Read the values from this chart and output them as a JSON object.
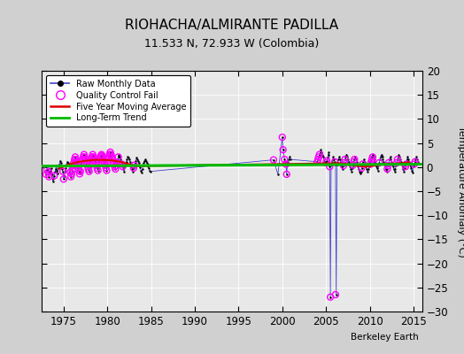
{
  "title": "RIOHACHA/ALMIRANTE PADILLA",
  "subtitle": "11.533 N, 72.933 W (Colombia)",
  "ylabel": "Temperature Anomaly (°C)",
  "xlabel_note": "Berkeley Earth",
  "xlim": [
    1972.5,
    2016
  ],
  "ylim": [
    -30,
    20
  ],
  "yticks": [
    -30,
    -25,
    -20,
    -15,
    -10,
    -5,
    0,
    5,
    10,
    15,
    20
  ],
  "xticks": [
    1975,
    1980,
    1985,
    1990,
    1995,
    2000,
    2005,
    2010,
    2015
  ],
  "fig_bg_color": "#d0d0d0",
  "plot_bg_color": "#e8e8e8",
  "grid_color": "#ffffff",
  "raw_line_color": "#4444cc",
  "raw_dot_color": "#000000",
  "qc_fail_color": "#ff00ff",
  "moving_avg_color": "#dd0000",
  "trend_color": "#00bb00",
  "raw_data_years": [
    1973.0,
    1973.083,
    1973.167,
    1973.25,
    1973.333,
    1973.417,
    1973.5,
    1973.583,
    1973.667,
    1973.75,
    1973.833,
    1973.917,
    1974.0,
    1974.083,
    1974.167,
    1974.25,
    1974.333,
    1974.417,
    1974.5,
    1974.583,
    1974.667,
    1974.75,
    1974.833,
    1974.917,
    1975.0,
    1975.083,
    1975.167,
    1975.25,
    1975.333,
    1975.417,
    1975.5,
    1975.583,
    1975.667,
    1975.75,
    1975.833,
    1975.917,
    1976.0,
    1976.083,
    1976.167,
    1976.25,
    1976.333,
    1976.417,
    1976.5,
    1976.583,
    1976.667,
    1976.75,
    1976.833,
    1976.917,
    1977.0,
    1977.083,
    1977.167,
    1977.25,
    1977.333,
    1977.417,
    1977.5,
    1977.583,
    1977.667,
    1977.75,
    1977.833,
    1977.917,
    1978.0,
    1978.083,
    1978.167,
    1978.25,
    1978.333,
    1978.417,
    1978.5,
    1978.583,
    1978.667,
    1978.75,
    1978.833,
    1978.917,
    1979.0,
    1979.083,
    1979.167,
    1979.25,
    1979.333,
    1979.417,
    1979.5,
    1979.583,
    1979.667,
    1979.75,
    1979.833,
    1979.917,
    1980.0,
    1980.083,
    1980.167,
    1980.25,
    1980.333,
    1980.417,
    1980.5,
    1980.583,
    1980.667,
    1980.75,
    1980.833,
    1980.917,
    1981.0,
    1981.083,
    1981.167,
    1981.25,
    1981.333,
    1981.417,
    1981.5,
    1981.583,
    1981.667,
    1981.75,
    1981.833,
    1981.917,
    1982.0,
    1982.083,
    1982.167,
    1982.25,
    1982.333,
    1982.417,
    1982.5,
    1982.583,
    1982.667,
    1982.75,
    1982.833,
    1982.917,
    1983.0,
    1983.083,
    1983.167,
    1983.25,
    1983.333,
    1983.417,
    1983.5,
    1983.583,
    1983.667,
    1983.75,
    1983.833,
    1983.917,
    1984.0,
    1984.083,
    1984.167,
    1984.25,
    1984.333,
    1984.417,
    1984.5,
    1984.583,
    1984.667,
    1984.75,
    1984.833,
    1984.917,
    1999.0,
    1999.5,
    2000.0,
    2000.083,
    2000.25,
    2000.333,
    2000.417,
    2000.5,
    2000.583,
    2000.667,
    2000.75,
    2000.833,
    2000.917,
    2004.0,
    2004.083,
    2004.167,
    2004.25,
    2004.333,
    2004.417,
    2004.5,
    2004.583,
    2004.667,
    2004.75,
    2004.833,
    2004.917,
    2005.0,
    2005.083,
    2005.167,
    2005.25,
    2005.333,
    2005.417,
    2005.5,
    2005.583,
    2005.667,
    2005.75,
    2005.833,
    2005.917,
    2006.0,
    2006.083,
    2006.167,
    2006.25,
    2006.333,
    2006.417,
    2006.5,
    2006.583,
    2006.667,
    2006.75,
    2006.833,
    2006.917,
    2007.0,
    2007.083,
    2007.167,
    2007.25,
    2007.333,
    2007.417,
    2007.5,
    2007.583,
    2007.667,
    2007.75,
    2007.833,
    2007.917,
    2008.0,
    2008.083,
    2008.167,
    2008.25,
    2008.333,
    2008.417,
    2008.5,
    2008.583,
    2008.667,
    2008.75,
    2008.833,
    2008.917,
    2009.0,
    2009.083,
    2009.167,
    2009.25,
    2009.333,
    2009.417,
    2009.5,
    2009.583,
    2009.667,
    2009.75,
    2009.833,
    2009.917,
    2010.0,
    2010.083,
    2010.167,
    2010.25,
    2010.333,
    2010.417,
    2010.5,
    2010.583,
    2010.667,
    2010.75,
    2010.833,
    2010.917,
    2011.0,
    2011.083,
    2011.167,
    2011.25,
    2011.333,
    2011.417,
    2011.5,
    2011.583,
    2011.667,
    2011.75,
    2011.833,
    2011.917,
    2012.0,
    2012.083,
    2012.167,
    2012.25,
    2012.333,
    2012.417,
    2012.5,
    2012.583,
    2012.667,
    2012.75,
    2012.833,
    2012.917,
    2013.0,
    2013.083,
    2013.167,
    2013.25,
    2013.333,
    2013.417,
    2013.5,
    2013.583,
    2013.667,
    2013.75,
    2013.833,
    2013.917,
    2014.0,
    2014.083,
    2014.167,
    2014.25,
    2014.333,
    2014.417,
    2014.5,
    2014.583,
    2014.667,
    2014.75,
    2014.833,
    2014.917,
    2015.0,
    2015.083,
    2015.167,
    2015.25,
    2015.333,
    2015.417,
    2015.5
  ],
  "raw_data_values": [
    -1.5,
    -0.5,
    0.3,
    -1.0,
    -2.0,
    -1.3,
    -0.8,
    -0.3,
    -1.5,
    -3.0,
    -2.5,
    -1.8,
    -1.0,
    -0.4,
    0.3,
    -0.7,
    -1.3,
    -0.2,
    0.6,
    1.3,
    0.9,
    0.4,
    -0.4,
    -0.9,
    -2.5,
    -1.8,
    -0.7,
    -0.2,
    0.6,
    1.1,
    0.9,
    0.4,
    -0.4,
    -1.1,
    -2.0,
    -1.4,
    -0.7,
    0.3,
    0.9,
    1.6,
    2.1,
    1.6,
    1.1,
    0.6,
    -0.2,
    -0.7,
    -1.4,
    -0.9,
    0.6,
    1.1,
    1.6,
    2.1,
    2.6,
    2.1,
    1.6,
    1.1,
    0.6,
    0.1,
    -0.4,
    -0.9,
    0.4,
    1.1,
    1.6,
    2.1,
    2.6,
    2.1,
    1.9,
    1.3,
    0.9,
    0.4,
    -0.2,
    -0.7,
    0.6,
    1.3,
    1.9,
    2.3,
    2.6,
    2.3,
    1.9,
    1.3,
    0.9,
    0.4,
    -0.1,
    -0.7,
    1.1,
    1.6,
    2.1,
    2.6,
    3.1,
    2.6,
    2.1,
    1.6,
    1.1,
    0.6,
    0.1,
    -0.4,
    0.3,
    0.9,
    1.6,
    2.1,
    2.6,
    2.1,
    1.6,
    1.1,
    0.6,
    0.1,
    -0.4,
    -0.9,
    0.1,
    0.6,
    1.1,
    1.6,
    2.1,
    1.9,
    1.6,
    1.1,
    0.6,
    0.1,
    -0.4,
    -0.9,
    -0.2,
    0.4,
    0.9,
    1.3,
    1.9,
    1.6,
    1.3,
    0.9,
    0.4,
    -0.1,
    -0.7,
    -1.1,
    -0.4,
    0.3,
    0.9,
    1.3,
    1.6,
    1.3,
    0.9,
    0.6,
    0.1,
    -0.2,
    -0.7,
    -0.9,
    1.5,
    -1.5,
    6.2,
    3.6,
    1.6,
    1.1,
    0.6,
    -1.5,
    0.6,
    1.1,
    1.6,
    2.1,
    1.6,
    1.1,
    1.6,
    2.1,
    2.6,
    3.1,
    3.6,
    3.1,
    2.6,
    2.1,
    1.6,
    1.1,
    0.6,
    0.9,
    1.3,
    1.9,
    2.6,
    3.1,
    0.1,
    -27.0,
    0.6,
    1.1,
    1.6,
    2.1,
    1.6,
    1.1,
    0.6,
    -26.5,
    0.6,
    1.1,
    1.6,
    2.1,
    1.6,
    1.1,
    0.6,
    0.1,
    -0.4,
    0.3,
    0.9,
    1.6,
    2.1,
    2.6,
    2.1,
    1.6,
    1.1,
    0.6,
    0.1,
    -0.4,
    -0.9,
    -0.2,
    0.4,
    1.1,
    1.6,
    2.1,
    1.6,
    1.1,
    0.6,
    0.1,
    -0.4,
    -0.9,
    -1.4,
    -0.9,
    -0.2,
    0.6,
    1.1,
    1.6,
    1.1,
    0.6,
    0.1,
    -0.4,
    -0.9,
    -0.4,
    0.1,
    0.6,
    1.1,
    1.6,
    2.1,
    2.6,
    2.1,
    1.6,
    1.1,
    0.6,
    0.1,
    -0.2,
    -0.7,
    0.3,
    0.9,
    1.6,
    2.1,
    2.6,
    2.1,
    1.6,
    1.1,
    0.6,
    0.1,
    -0.4,
    -0.9,
    -0.4,
    0.3,
    0.9,
    1.6,
    2.1,
    1.6,
    1.1,
    0.6,
    0.1,
    -0.4,
    -0.9,
    -0.4,
    0.4,
    0.9,
    1.6,
    2.1,
    2.6,
    2.1,
    1.6,
    1.1,
    0.6,
    0.1,
    -0.4,
    -0.9,
    -0.2,
    0.6,
    1.1,
    1.6,
    2.1,
    1.6,
    1.1,
    0.6,
    0.1,
    -0.2,
    -0.7,
    -1.1,
    0.1,
    0.6,
    1.1,
    1.6,
    2.1,
    1.6,
    1.1
  ],
  "qc_years": [
    1973.0,
    1973.083,
    1973.25,
    1973.333,
    1973.917,
    1974.917,
    1975.0,
    1975.75,
    1975.833,
    1975.917,
    1976.0,
    1976.083,
    1976.167,
    1976.25,
    1976.333,
    1976.417,
    1976.5,
    1976.583,
    1976.667,
    1976.75,
    1976.833,
    1976.917,
    1977.0,
    1977.083,
    1977.167,
    1977.25,
    1977.333,
    1977.417,
    1977.5,
    1977.583,
    1977.667,
    1977.75,
    1977.833,
    1977.917,
    1978.0,
    1978.083,
    1978.167,
    1978.25,
    1978.333,
    1978.417,
    1978.5,
    1978.583,
    1978.667,
    1978.75,
    1978.833,
    1978.917,
    1979.0,
    1979.083,
    1979.167,
    1979.25,
    1979.333,
    1979.417,
    1979.5,
    1979.583,
    1979.667,
    1979.75,
    1979.833,
    1979.917,
    1980.0,
    1980.083,
    1980.167,
    1980.25,
    1980.333,
    1980.417,
    1980.5,
    1980.583,
    1980.667,
    1980.75,
    1980.833,
    1980.917,
    1981.0,
    1981.083,
    1981.25,
    1981.667,
    1981.75,
    1983.0,
    1983.083,
    1999.0,
    2000.0,
    2000.083,
    2000.25,
    2000.417,
    2000.5,
    2004.0,
    2004.083,
    2004.167,
    2004.25,
    2005.0,
    2005.083,
    2005.417,
    2005.5,
    2006.0,
    2006.083,
    2007.0,
    2007.083,
    2007.167,
    2008.083,
    2008.167,
    2008.25,
    2009.083,
    2009.167,
    2010.083,
    2010.167,
    2010.25,
    2010.333,
    2011.083,
    2012.0,
    2012.083,
    2012.167,
    2013.083,
    2013.167,
    2014.083,
    2014.167,
    2015.083,
    2015.167
  ],
  "qc_values": [
    -1.5,
    -0.5,
    -1.0,
    -2.0,
    -1.8,
    -0.9,
    -2.5,
    -1.1,
    -2.0,
    -1.4,
    -0.7,
    0.3,
    0.9,
    1.6,
    2.1,
    1.6,
    1.1,
    0.6,
    -0.2,
    -0.7,
    -1.4,
    -0.9,
    0.6,
    1.1,
    1.6,
    2.1,
    2.6,
    2.1,
    1.6,
    1.1,
    0.6,
    0.1,
    -0.4,
    -0.9,
    0.4,
    1.1,
    1.6,
    2.1,
    2.6,
    2.1,
    1.9,
    1.3,
    0.9,
    0.4,
    -0.2,
    -0.7,
    0.6,
    1.3,
    1.9,
    2.3,
    2.6,
    2.3,
    1.9,
    1.3,
    0.9,
    0.4,
    -0.1,
    -0.7,
    1.1,
    1.6,
    2.1,
    2.6,
    3.1,
    2.6,
    2.1,
    1.6,
    1.1,
    0.6,
    0.1,
    -0.4,
    0.3,
    0.9,
    2.1,
    0.6,
    0.1,
    -0.2,
    0.4,
    1.5,
    6.2,
    3.6,
    1.6,
    0.6,
    -1.5,
    1.1,
    1.6,
    2.1,
    2.6,
    0.9,
    1.3,
    0.1,
    -27.0,
    1.1,
    -26.5,
    0.3,
    0.9,
    1.6,
    0.4,
    1.1,
    1.6,
    -0.2,
    0.6,
    0.6,
    1.1,
    1.6,
    2.1,
    0.9,
    -0.4,
    0.3,
    0.9,
    0.9,
    1.6,
    0.1,
    0.6,
    0.6,
    1.1
  ],
  "moving_avg_years": [
    1974.5,
    1975.5,
    1976.5,
    1977.5,
    1978.5,
    1979.5,
    1980.5,
    1981.5,
    1982.5,
    1983.5,
    2006.5,
    2007.5,
    2008.5,
    2009.5,
    2010.5,
    2011.5,
    2012.5,
    2013.5,
    2014.5
  ],
  "moving_avg_values": [
    -0.3,
    0.5,
    1.0,
    1.3,
    1.5,
    1.5,
    1.4,
    1.1,
    0.6,
    0.2,
    0.8,
    0.6,
    0.3,
    0.1,
    0.3,
    0.6,
    0.7,
    0.8,
    1.0
  ],
  "trend_years": [
    1972.5,
    2016.0
  ],
  "trend_values": [
    0.2,
    0.6
  ]
}
